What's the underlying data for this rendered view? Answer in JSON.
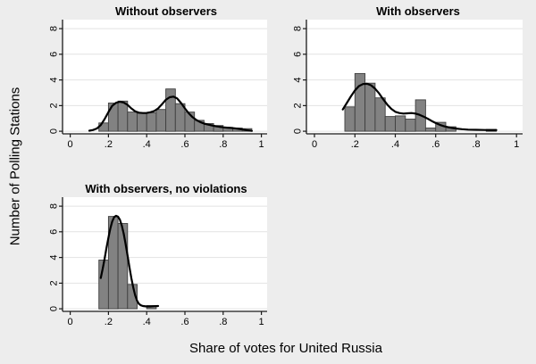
{
  "figure": {
    "ylabel": "Number of Polling Stations",
    "xlabel": "Share of votes for United Russia",
    "colors": {
      "background": "#ededed",
      "plot_bg": "#ffffff",
      "grid": "#e2e2e2",
      "bar_fill": "#828282",
      "bar_stroke": "#3f3f3f",
      "density_line": "#000000",
      "axis": "#1a1a1a",
      "text": "#000000"
    }
  },
  "chart_data": [
    {
      "type": "bar",
      "subtype": "histogram_with_kernel_density",
      "title": "Without observers",
      "bin_width": 0.05,
      "bins": [
        [
          0.15,
          0.65
        ],
        [
          0.2,
          2.2
        ],
        [
          0.25,
          2.35
        ],
        [
          0.3,
          1.5
        ],
        [
          0.35,
          1.4
        ],
        [
          0.4,
          1.45
        ],
        [
          0.45,
          1.7
        ],
        [
          0.5,
          3.3
        ],
        [
          0.55,
          2.15
        ],
        [
          0.6,
          1.5
        ],
        [
          0.65,
          0.85
        ],
        [
          0.7,
          0.6
        ],
        [
          0.75,
          0.45
        ],
        [
          0.8,
          0.3
        ],
        [
          0.85,
          0.25
        ],
        [
          0.9,
          0.2
        ]
      ],
      "density_curve": [
        [
          0.1,
          0.04
        ],
        [
          0.12,
          0.1
        ],
        [
          0.14,
          0.22
        ],
        [
          0.16,
          0.48
        ],
        [
          0.18,
          0.95
        ],
        [
          0.2,
          1.5
        ],
        [
          0.22,
          1.98
        ],
        [
          0.24,
          2.22
        ],
        [
          0.26,
          2.3
        ],
        [
          0.28,
          2.24
        ],
        [
          0.3,
          2.05
        ],
        [
          0.32,
          1.78
        ],
        [
          0.34,
          1.55
        ],
        [
          0.36,
          1.45
        ],
        [
          0.38,
          1.42
        ],
        [
          0.4,
          1.43
        ],
        [
          0.42,
          1.48
        ],
        [
          0.44,
          1.58
        ],
        [
          0.46,
          1.78
        ],
        [
          0.48,
          2.1
        ],
        [
          0.5,
          2.45
        ],
        [
          0.52,
          2.65
        ],
        [
          0.54,
          2.7
        ],
        [
          0.56,
          2.55
        ],
        [
          0.58,
          2.2
        ],
        [
          0.6,
          1.78
        ],
        [
          0.62,
          1.4
        ],
        [
          0.64,
          1.1
        ],
        [
          0.66,
          0.88
        ],
        [
          0.68,
          0.72
        ],
        [
          0.7,
          0.6
        ],
        [
          0.72,
          0.52
        ],
        [
          0.74,
          0.46
        ],
        [
          0.76,
          0.4
        ],
        [
          0.78,
          0.35
        ],
        [
          0.8,
          0.31
        ],
        [
          0.82,
          0.28
        ],
        [
          0.84,
          0.26
        ],
        [
          0.86,
          0.23
        ],
        [
          0.88,
          0.19
        ],
        [
          0.9,
          0.14
        ],
        [
          0.92,
          0.09
        ],
        [
          0.95,
          0.03
        ]
      ],
      "xticks": {
        "values": [
          0,
          0.2,
          0.4,
          0.6,
          0.8,
          1
        ],
        "labels": [
          "0",
          ".2",
          ".4",
          ".6",
          ".8",
          "1"
        ]
      },
      "yticks": {
        "values": [
          0,
          2,
          4,
          6,
          8
        ],
        "labels": [
          "0",
          "2",
          "4",
          "6",
          "8"
        ]
      },
      "xlim": [
        -0.04,
        1.03
      ],
      "ylim": [
        -0.2,
        8.7
      ],
      "grid": "horizontal"
    },
    {
      "type": "bar",
      "subtype": "histogram_with_kernel_density",
      "title": "With observers",
      "bin_width": 0.05,
      "bins": [
        [
          0.15,
          1.9
        ],
        [
          0.2,
          4.5
        ],
        [
          0.25,
          3.75
        ],
        [
          0.3,
          2.6
        ],
        [
          0.35,
          1.15
        ],
        [
          0.4,
          1.2
        ],
        [
          0.45,
          0.95
        ],
        [
          0.5,
          2.45
        ],
        [
          0.55,
          0.25
        ],
        [
          0.6,
          0.7
        ],
        [
          0.65,
          0.35
        ],
        [
          0.85,
          0.15
        ]
      ],
      "density_curve": [
        [
          0.14,
          1.7
        ],
        [
          0.16,
          2.2
        ],
        [
          0.18,
          2.72
        ],
        [
          0.2,
          3.18
        ],
        [
          0.22,
          3.52
        ],
        [
          0.24,
          3.68
        ],
        [
          0.26,
          3.7
        ],
        [
          0.28,
          3.58
        ],
        [
          0.3,
          3.32
        ],
        [
          0.32,
          2.95
        ],
        [
          0.34,
          2.5
        ],
        [
          0.36,
          2.08
        ],
        [
          0.38,
          1.75
        ],
        [
          0.4,
          1.52
        ],
        [
          0.42,
          1.42
        ],
        [
          0.44,
          1.38
        ],
        [
          0.46,
          1.4
        ],
        [
          0.48,
          1.42
        ],
        [
          0.5,
          1.38
        ],
        [
          0.52,
          1.28
        ],
        [
          0.54,
          1.14
        ],
        [
          0.56,
          0.98
        ],
        [
          0.58,
          0.8
        ],
        [
          0.6,
          0.64
        ],
        [
          0.62,
          0.5
        ],
        [
          0.64,
          0.4
        ],
        [
          0.66,
          0.32
        ],
        [
          0.68,
          0.26
        ],
        [
          0.7,
          0.21
        ],
        [
          0.73,
          0.16
        ],
        [
          0.76,
          0.13
        ],
        [
          0.8,
          0.11
        ],
        [
          0.84,
          0.1
        ],
        [
          0.88,
          0.09
        ],
        [
          0.9,
          0.09
        ]
      ],
      "xticks": {
        "values": [
          0,
          0.2,
          0.4,
          0.6,
          0.8,
          1
        ],
        "labels": [
          "0",
          ".2",
          ".4",
          ".6",
          ".8",
          "1"
        ]
      },
      "yticks": {
        "values": [
          0,
          2,
          4,
          6,
          8
        ],
        "labels": [
          "0",
          "2",
          "4",
          "6",
          "8"
        ]
      },
      "xlim": [
        -0.04,
        1.03
      ],
      "ylim": [
        -0.2,
        8.7
      ],
      "grid": "horizontal"
    },
    {
      "type": "bar",
      "subtype": "histogram_with_kernel_density",
      "title": "With observers, no violations",
      "bin_width": 0.05,
      "bins": [
        [
          0.15,
          3.8
        ],
        [
          0.2,
          7.2
        ],
        [
          0.25,
          6.65
        ],
        [
          0.3,
          1.9
        ],
        [
          0.4,
          0.25
        ]
      ],
      "density_curve": [
        [
          0.16,
          2.4
        ],
        [
          0.17,
          3.1
        ],
        [
          0.18,
          3.9
        ],
        [
          0.19,
          4.75
        ],
        [
          0.2,
          5.55
        ],
        [
          0.21,
          6.25
        ],
        [
          0.22,
          6.8
        ],
        [
          0.23,
          7.15
        ],
        [
          0.24,
          7.25
        ],
        [
          0.25,
          7.18
        ],
        [
          0.26,
          6.95
        ],
        [
          0.27,
          6.5
        ],
        [
          0.28,
          5.85
        ],
        [
          0.29,
          5.05
        ],
        [
          0.3,
          4.15
        ],
        [
          0.31,
          3.25
        ],
        [
          0.32,
          2.4
        ],
        [
          0.33,
          1.65
        ],
        [
          0.34,
          1.05
        ],
        [
          0.35,
          0.62
        ],
        [
          0.36,
          0.38
        ],
        [
          0.37,
          0.27
        ],
        [
          0.38,
          0.22
        ],
        [
          0.4,
          0.18
        ],
        [
          0.42,
          0.18
        ],
        [
          0.44,
          0.2
        ],
        [
          0.46,
          0.22
        ]
      ],
      "xticks": {
        "values": [
          0,
          0.2,
          0.4,
          0.6,
          0.8,
          1
        ],
        "labels": [
          "0",
          ".2",
          ".4",
          ".6",
          ".8",
          "1"
        ]
      },
      "yticks": {
        "values": [
          0,
          2,
          4,
          6,
          8
        ],
        "labels": [
          "0",
          "2",
          "4",
          "6",
          "8"
        ]
      },
      "xlim": [
        -0.04,
        1.03
      ],
      "ylim": [
        -0.2,
        8.7
      ],
      "grid": "horizontal"
    }
  ]
}
